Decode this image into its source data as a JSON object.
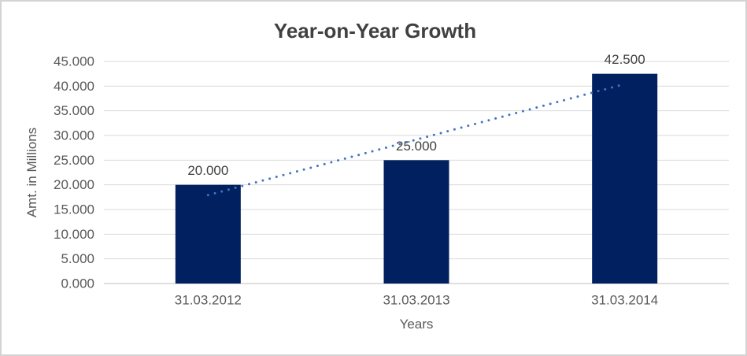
{
  "chart_data": {
    "type": "bar",
    "title": "Year-on-Year Growth",
    "xlabel": "Years",
    "ylabel": "Amt. in Millions",
    "categories": [
      "31.03.2012",
      "31.03.2013",
      "31.03.2014"
    ],
    "values": [
      20.0,
      25.0,
      42.5
    ],
    "value_labels": [
      "20.000",
      "25.000",
      "42.500"
    ],
    "bar_color": "#002060",
    "ylim": [
      0,
      45
    ],
    "y_ticks": [
      {
        "v": 0,
        "label": "0.000"
      },
      {
        "v": 5,
        "label": "5.000"
      },
      {
        "v": 10,
        "label": "10.000"
      },
      {
        "v": 15,
        "label": "15.000"
      },
      {
        "v": 20,
        "label": "20.000"
      },
      {
        "v": 25,
        "label": "25.000"
      },
      {
        "v": 30,
        "label": "30.000"
      },
      {
        "v": 35,
        "label": "35.000"
      },
      {
        "v": 40,
        "label": "40.000"
      },
      {
        "v": 45,
        "label": "45.000"
      }
    ],
    "grid": true,
    "legend": "none",
    "trendline": {
      "type": "linear",
      "style": "dotted",
      "color": "#4472C4",
      "start_value": 17.92,
      "end_value": 40.42
    }
  },
  "colors": {
    "background": "#FFFFFF",
    "border": "#D3D3D3",
    "gridline": "#D9D9D9",
    "axis_line": "#BFBFBF",
    "tick_text": "#595959",
    "title_text": "#404040",
    "data_label_text": "#404040"
  }
}
